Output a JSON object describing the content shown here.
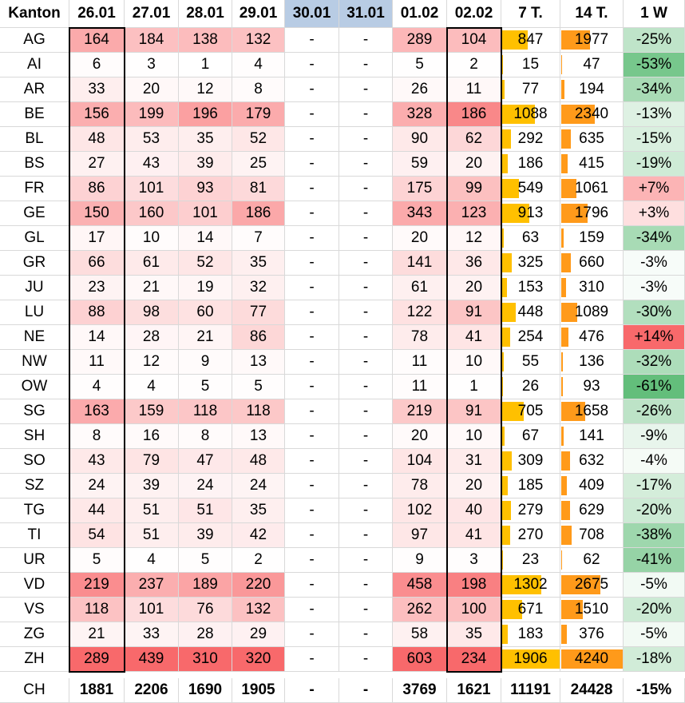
{
  "chart_data": {
    "type": "table",
    "title": "",
    "columns": [
      "Kanton",
      "26.01",
      "27.01",
      "28.01",
      "29.01",
      "30.01",
      "31.01",
      "01.02",
      "02.02",
      "7 T.",
      "14 T.",
      "1 W"
    ],
    "weekend_columns": [
      "30.01",
      "31.01"
    ],
    "highlighted_columns": [
      "26.01",
      "02.02"
    ],
    "colors": {
      "heat_low": "#ffffff",
      "heat_high": "#f8696b",
      "weekend_header": "#b8cce4",
      "bar_7day": "#ffc000",
      "bar_14day": "#ff9a1a",
      "change_positive": "#f8696b",
      "change_negative": "#63be7b",
      "grid_line": "#d9d9d9"
    },
    "rows": [
      {
        "kanton": "AG",
        "days": [
          "164",
          "184",
          "138",
          "132",
          "-",
          "-",
          "289",
          "104"
        ],
        "t7": 847,
        "t14": 1977,
        "w1": "-25%"
      },
      {
        "kanton": "AI",
        "days": [
          "6",
          "3",
          "1",
          "4",
          "-",
          "-",
          "5",
          "2"
        ],
        "t7": 15,
        "t14": 47,
        "w1": "-53%"
      },
      {
        "kanton": "AR",
        "days": [
          "33",
          "20",
          "12",
          "8",
          "-",
          "-",
          "26",
          "11"
        ],
        "t7": 77,
        "t14": 194,
        "w1": "-34%"
      },
      {
        "kanton": "BE",
        "days": [
          "156",
          "199",
          "196",
          "179",
          "-",
          "-",
          "328",
          "186"
        ],
        "t7": 1088,
        "t14": 2340,
        "w1": "-13%"
      },
      {
        "kanton": "BL",
        "days": [
          "48",
          "53",
          "35",
          "52",
          "-",
          "-",
          "90",
          "62"
        ],
        "t7": 292,
        "t14": 635,
        "w1": "-15%"
      },
      {
        "kanton": "BS",
        "days": [
          "27",
          "43",
          "39",
          "25",
          "-",
          "-",
          "59",
          "20"
        ],
        "t7": 186,
        "t14": 415,
        "w1": "-19%"
      },
      {
        "kanton": "FR",
        "days": [
          "86",
          "101",
          "93",
          "81",
          "-",
          "-",
          "175",
          "99"
        ],
        "t7": 549,
        "t14": 1061,
        "w1": "+7%"
      },
      {
        "kanton": "GE",
        "days": [
          "150",
          "160",
          "101",
          "186",
          "-",
          "-",
          "343",
          "123"
        ],
        "t7": 913,
        "t14": 1796,
        "w1": "+3%"
      },
      {
        "kanton": "GL",
        "days": [
          "17",
          "10",
          "14",
          "7",
          "-",
          "-",
          "20",
          "12"
        ],
        "t7": 63,
        "t14": 159,
        "w1": "-34%"
      },
      {
        "kanton": "GR",
        "days": [
          "66",
          "61",
          "52",
          "35",
          "-",
          "-",
          "141",
          "36"
        ],
        "t7": 325,
        "t14": 660,
        "w1": "-3%"
      },
      {
        "kanton": "JU",
        "days": [
          "23",
          "21",
          "19",
          "32",
          "-",
          "-",
          "61",
          "20"
        ],
        "t7": 153,
        "t14": 310,
        "w1": "-3%"
      },
      {
        "kanton": "LU",
        "days": [
          "88",
          "98",
          "60",
          "77",
          "-",
          "-",
          "122",
          "91"
        ],
        "t7": 448,
        "t14": 1089,
        "w1": "-30%"
      },
      {
        "kanton": "NE",
        "days": [
          "14",
          "28",
          "21",
          "86",
          "-",
          "-",
          "78",
          "41"
        ],
        "t7": 254,
        "t14": 476,
        "w1": "+14%"
      },
      {
        "kanton": "NW",
        "days": [
          "11",
          "12",
          "9",
          "13",
          "-",
          "-",
          "11",
          "10"
        ],
        "t7": 55,
        "t14": 136,
        "w1": "-32%"
      },
      {
        "kanton": "OW",
        "days": [
          "4",
          "4",
          "5",
          "5",
          "-",
          "-",
          "11",
          "1"
        ],
        "t7": 26,
        "t14": 93,
        "w1": "-61%"
      },
      {
        "kanton": "SG",
        "days": [
          "163",
          "159",
          "118",
          "118",
          "-",
          "-",
          "219",
          "91"
        ],
        "t7": 705,
        "t14": 1658,
        "w1": "-26%"
      },
      {
        "kanton": "SH",
        "days": [
          "8",
          "16",
          "8",
          "13",
          "-",
          "-",
          "20",
          "10"
        ],
        "t7": 67,
        "t14": 141,
        "w1": "-9%"
      },
      {
        "kanton": "SO",
        "days": [
          "43",
          "79",
          "47",
          "48",
          "-",
          "-",
          "104",
          "31"
        ],
        "t7": 309,
        "t14": 632,
        "w1": "-4%"
      },
      {
        "kanton": "SZ",
        "days": [
          "24",
          "39",
          "24",
          "24",
          "-",
          "-",
          "78",
          "20"
        ],
        "t7": 185,
        "t14": 409,
        "w1": "-17%"
      },
      {
        "kanton": "TG",
        "days": [
          "44",
          "51",
          "51",
          "35",
          "-",
          "-",
          "102",
          "40"
        ],
        "t7": 279,
        "t14": 629,
        "w1": "-20%"
      },
      {
        "kanton": "TI",
        "days": [
          "54",
          "51",
          "39",
          "42",
          "-",
          "-",
          "97",
          "41"
        ],
        "t7": 270,
        "t14": 708,
        "w1": "-38%"
      },
      {
        "kanton": "UR",
        "days": [
          "5",
          "4",
          "5",
          "2",
          "-",
          "-",
          "9",
          "3"
        ],
        "t7": 23,
        "t14": 62,
        "w1": "-41%"
      },
      {
        "kanton": "VD",
        "days": [
          "219",
          "237",
          "189",
          "220",
          "-",
          "-",
          "458",
          "198"
        ],
        "t7": 1302,
        "t14": 2675,
        "w1": "-5%"
      },
      {
        "kanton": "VS",
        "days": [
          "118",
          "101",
          "76",
          "132",
          "-",
          "-",
          "262",
          "100"
        ],
        "t7": 671,
        "t14": 1510,
        "w1": "-20%"
      },
      {
        "kanton": "ZG",
        "days": [
          "21",
          "33",
          "28",
          "29",
          "-",
          "-",
          "58",
          "35"
        ],
        "t7": 183,
        "t14": 376,
        "w1": "-5%"
      },
      {
        "kanton": "ZH",
        "days": [
          "289",
          "439",
          "310",
          "320",
          "-",
          "-",
          "603",
          "234"
        ],
        "t7": 1906,
        "t14": 4240,
        "w1": "-18%"
      }
    ],
    "total": {
      "kanton": "CH",
      "days": [
        "1881",
        "2206",
        "1690",
        "1905",
        "-",
        "-",
        "3769",
        "1621"
      ],
      "t7": 11191,
      "t14": 24428,
      "w1": "-15%"
    }
  }
}
